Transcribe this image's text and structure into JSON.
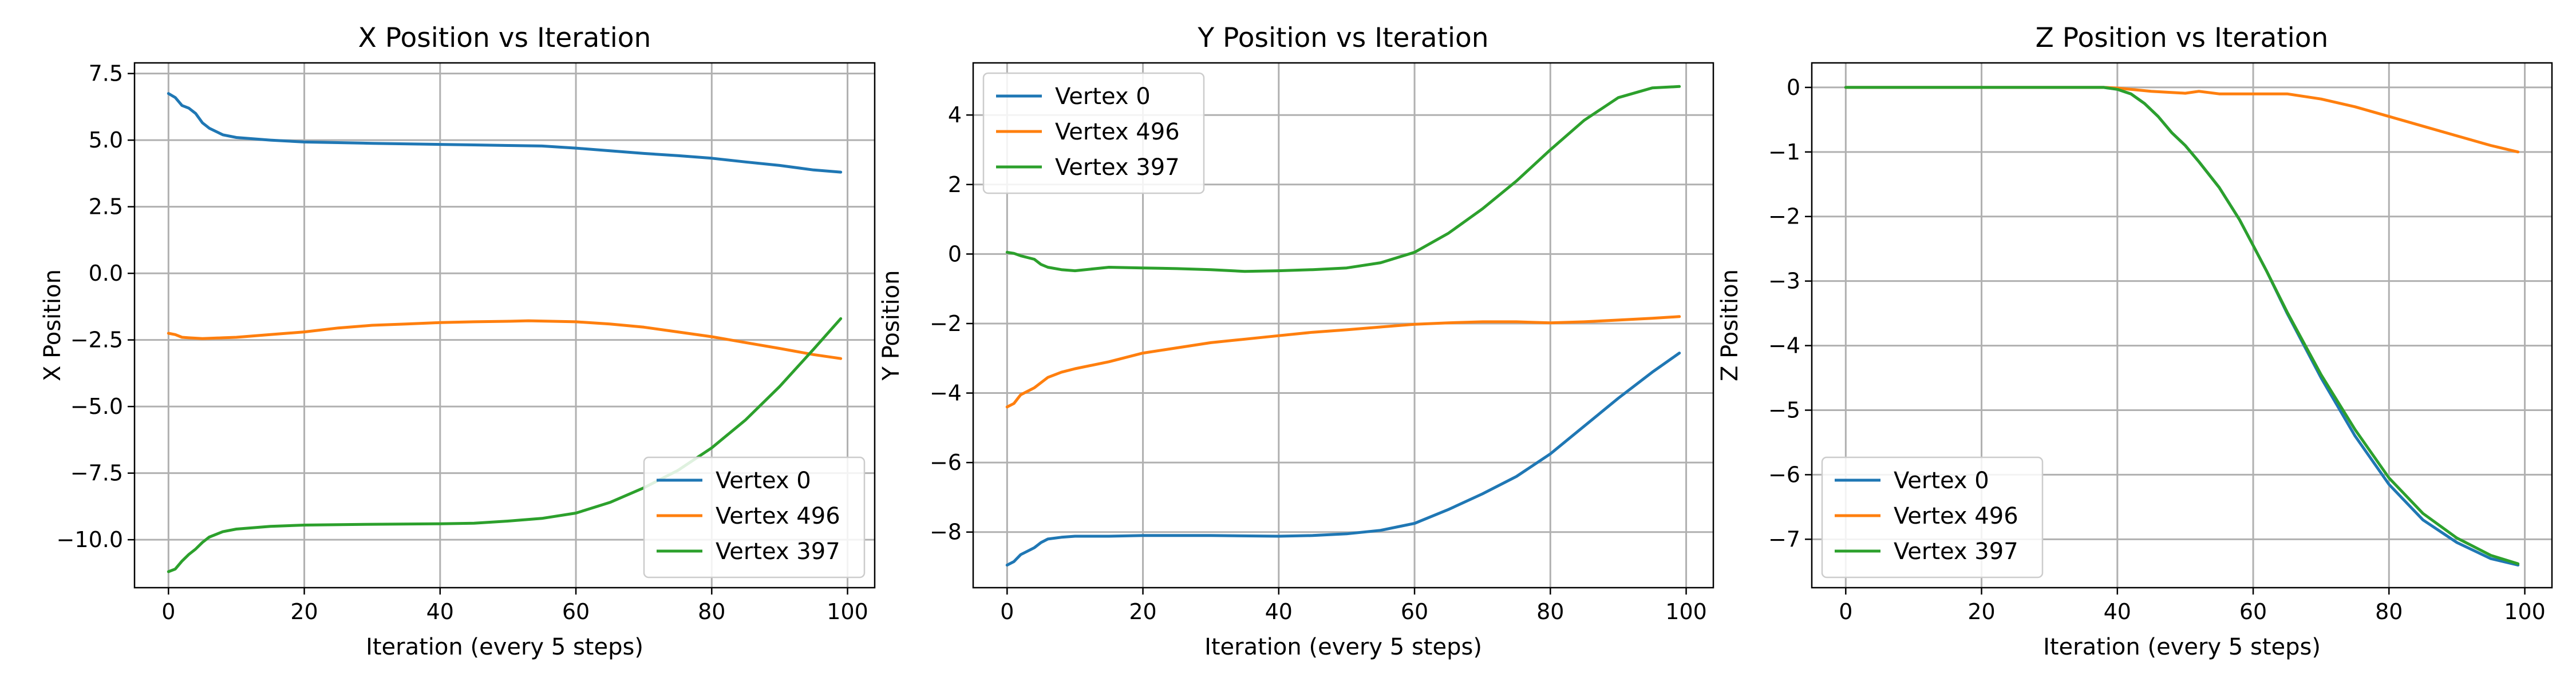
{
  "colors": {
    "series_0": "#1f77b4",
    "series_1": "#ff7f0e",
    "series_2": "#2ca02c",
    "grid": "#b0b0b0"
  },
  "chart_data": [
    {
      "type": "line",
      "title": "X Position vs Iteration",
      "xlabel": "Iteration (every 5 steps)",
      "ylabel": "X Position",
      "xlim": [
        -5,
        104
      ],
      "ylim": [
        -11.8,
        7.9
      ],
      "xticks": [
        0,
        20,
        40,
        60,
        80,
        100
      ],
      "xtick_labels": [
        "0",
        "20",
        "40",
        "60",
        "80",
        "100"
      ],
      "yticks": [
        -10,
        -7.5,
        -5,
        -2.5,
        0,
        2.5,
        5,
        7.5
      ],
      "ytick_labels": [
        "−10.0",
        "−7.5",
        "−5.0",
        "−2.5",
        "0.0",
        "2.5",
        "5.0",
        "7.5"
      ],
      "grid": true,
      "legend_position": "bottom-right",
      "series": [
        {
          "name": "Vertex 0",
          "color": "#1f77b4",
          "x": [
            0,
            1,
            2,
            3,
            4,
            5,
            6,
            8,
            10,
            15,
            20,
            30,
            40,
            45,
            50,
            55,
            60,
            65,
            70,
            75,
            80,
            85,
            90,
            95,
            99
          ],
          "y": [
            6.75,
            6.6,
            6.3,
            6.2,
            6.0,
            5.65,
            5.45,
            5.2,
            5.1,
            5.0,
            4.93,
            4.88,
            4.84,
            4.82,
            4.8,
            4.78,
            4.7,
            4.6,
            4.5,
            4.42,
            4.32,
            4.18,
            4.05,
            3.88,
            3.8
          ]
        },
        {
          "name": "Vertex 496",
          "color": "#ff7f0e",
          "x": [
            0,
            1,
            2,
            3,
            5,
            8,
            10,
            15,
            20,
            25,
            30,
            35,
            40,
            45,
            50,
            53,
            60,
            65,
            70,
            75,
            80,
            85,
            90,
            95,
            99
          ],
          "y": [
            -2.25,
            -2.3,
            -2.4,
            -2.42,
            -2.45,
            -2.42,
            -2.4,
            -2.3,
            -2.2,
            -2.05,
            -1.95,
            -1.9,
            -1.85,
            -1.82,
            -1.8,
            -1.78,
            -1.82,
            -1.9,
            -2.02,
            -2.2,
            -2.38,
            -2.6,
            -2.82,
            -3.05,
            -3.2
          ]
        },
        {
          "name": "Vertex 397",
          "color": "#2ca02c",
          "x": [
            0,
            1,
            2,
            3,
            4,
            5,
            6,
            8,
            10,
            15,
            20,
            30,
            40,
            45,
            50,
            55,
            60,
            65,
            70,
            75,
            80,
            85,
            90,
            95,
            99
          ],
          "y": [
            -11.2,
            -11.1,
            -10.8,
            -10.55,
            -10.35,
            -10.1,
            -9.9,
            -9.7,
            -9.6,
            -9.5,
            -9.45,
            -9.42,
            -9.4,
            -9.38,
            -9.3,
            -9.2,
            -9.0,
            -8.6,
            -8.05,
            -7.4,
            -6.55,
            -5.5,
            -4.25,
            -2.85,
            -1.7
          ]
        }
      ]
    },
    {
      "type": "line",
      "title": "Y Position vs Iteration",
      "xlabel": "Iteration (every 5 steps)",
      "ylabel": "Y Position",
      "xlim": [
        -5,
        104
      ],
      "ylim": [
        -9.6,
        5.5
      ],
      "xticks": [
        0,
        20,
        40,
        60,
        80,
        100
      ],
      "xtick_labels": [
        "0",
        "20",
        "40",
        "60",
        "80",
        "100"
      ],
      "yticks": [
        -8,
        -6,
        -4,
        -2,
        0,
        2,
        4
      ],
      "ytick_labels": [
        "−8",
        "−6",
        "−4",
        "−2",
        "0",
        "2",
        "4"
      ],
      "grid": true,
      "legend_position": "top-left",
      "series": [
        {
          "name": "Vertex 0",
          "color": "#1f77b4",
          "x": [
            0,
            1,
            2,
            3,
            4,
            5,
            6,
            8,
            10,
            15,
            20,
            30,
            40,
            45,
            50,
            55,
            60,
            65,
            70,
            75,
            80,
            85,
            90,
            95,
            99
          ],
          "y": [
            -8.95,
            -8.85,
            -8.65,
            -8.55,
            -8.45,
            -8.3,
            -8.2,
            -8.15,
            -8.12,
            -8.12,
            -8.1,
            -8.1,
            -8.12,
            -8.1,
            -8.05,
            -7.95,
            -7.75,
            -7.35,
            -6.9,
            -6.4,
            -5.75,
            -4.95,
            -4.15,
            -3.4,
            -2.85
          ]
        },
        {
          "name": "Vertex 496",
          "color": "#ff7f0e",
          "x": [
            0,
            1,
            2,
            3,
            4,
            5,
            6,
            8,
            10,
            15,
            20,
            25,
            30,
            35,
            40,
            45,
            50,
            55,
            60,
            65,
            70,
            75,
            80,
            85,
            90,
            95,
            99
          ],
          "y": [
            -4.4,
            -4.3,
            -4.05,
            -3.95,
            -3.85,
            -3.7,
            -3.55,
            -3.4,
            -3.3,
            -3.1,
            -2.85,
            -2.7,
            -2.55,
            -2.45,
            -2.35,
            -2.25,
            -2.18,
            -2.1,
            -2.02,
            -1.98,
            -1.95,
            -1.95,
            -1.98,
            -1.95,
            -1.9,
            -1.85,
            -1.8
          ]
        },
        {
          "name": "Vertex 397",
          "color": "#2ca02c",
          "x": [
            0,
            1,
            2,
            3,
            4,
            5,
            6,
            8,
            10,
            15,
            20,
            25,
            30,
            35,
            40,
            45,
            50,
            55,
            60,
            65,
            70,
            75,
            80,
            85,
            90,
            95,
            99
          ],
          "y": [
            0.05,
            0.02,
            -0.05,
            -0.1,
            -0.15,
            -0.3,
            -0.38,
            -0.45,
            -0.48,
            -0.38,
            -0.4,
            -0.42,
            -0.45,
            -0.5,
            -0.48,
            -0.45,
            -0.4,
            -0.25,
            0.05,
            0.6,
            1.3,
            2.1,
            3.0,
            3.85,
            4.5,
            4.78,
            4.82
          ]
        }
      ]
    },
    {
      "type": "line",
      "title": "Z Position vs Iteration",
      "xlabel": "Iteration (every 5 steps)",
      "ylabel": "Z Position",
      "xlim": [
        -5,
        104
      ],
      "ylim": [
        -7.75,
        0.38
      ],
      "xticks": [
        0,
        20,
        40,
        60,
        80,
        100
      ],
      "xtick_labels": [
        "0",
        "20",
        "40",
        "60",
        "80",
        "100"
      ],
      "yticks": [
        -7,
        -6,
        -5,
        -4,
        -3,
        -2,
        -1,
        0
      ],
      "ytick_labels": [
        "−7",
        "−6",
        "−5",
        "−4",
        "−3",
        "−2",
        "−1",
        "0"
      ],
      "grid": true,
      "legend_position": "bottom-left",
      "series": [
        {
          "name": "Vertex 0",
          "color": "#1f77b4",
          "x": [
            0,
            10,
            20,
            30,
            38,
            40,
            42,
            44,
            46,
            48,
            50,
            52,
            55,
            58,
            60,
            62,
            65,
            70,
            75,
            80,
            85,
            90,
            95,
            99
          ],
          "y": [
            0,
            0,
            0,
            0,
            0,
            -0.03,
            -0.1,
            -0.25,
            -0.45,
            -0.7,
            -0.9,
            -1.15,
            -1.55,
            -2.05,
            -2.45,
            -2.85,
            -3.5,
            -4.5,
            -5.4,
            -6.15,
            -6.7,
            -7.05,
            -7.3,
            -7.4
          ]
        },
        {
          "name": "Vertex 496",
          "color": "#ff7f0e",
          "x": [
            0,
            10,
            20,
            30,
            38,
            40,
            45,
            50,
            52,
            55,
            60,
            65,
            70,
            75,
            80,
            85,
            90,
            95,
            99
          ],
          "y": [
            0,
            0,
            0,
            0,
            0,
            -0.01,
            -0.06,
            -0.09,
            -0.06,
            -0.1,
            -0.1,
            -0.1,
            -0.18,
            -0.3,
            -0.45,
            -0.6,
            -0.75,
            -0.9,
            -1.0
          ]
        },
        {
          "name": "Vertex 397",
          "color": "#2ca02c",
          "x": [
            0,
            10,
            20,
            30,
            38,
            40,
            42,
            44,
            46,
            48,
            50,
            52,
            55,
            58,
            60,
            62,
            65,
            70,
            75,
            80,
            85,
            90,
            95,
            99
          ],
          "y": [
            0,
            0,
            0,
            0,
            0,
            -0.03,
            -0.1,
            -0.25,
            -0.45,
            -0.7,
            -0.9,
            -1.15,
            -1.55,
            -2.05,
            -2.45,
            -2.85,
            -3.48,
            -4.45,
            -5.3,
            -6.05,
            -6.6,
            -6.98,
            -7.25,
            -7.38
          ]
        }
      ]
    }
  ]
}
